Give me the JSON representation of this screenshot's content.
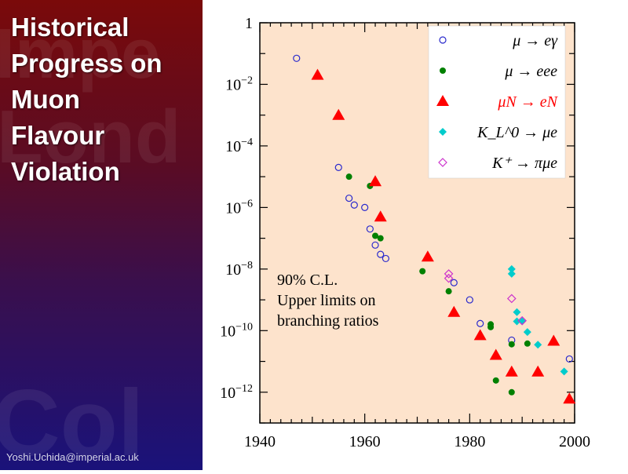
{
  "slide": {
    "title_lines": [
      "Historical",
      "Progress on",
      "Muon",
      "Flavour",
      "Violation"
    ],
    "email": "Yoshi.Uchida@imperial.ac.uk"
  },
  "colors": {
    "plot_bg": "#fde3cc",
    "mu_egamma": "#2a2acc",
    "mu_eee": "#008000",
    "muN_eN": "#ff0000",
    "KL_mue": "#00cccc",
    "Kplus_pimue": "#cc33cc"
  },
  "chart_data": {
    "type": "scatter",
    "y_scale": "log",
    "xlim": [
      1940,
      2000
    ],
    "ylim_log10": [
      -13,
      0
    ],
    "x_ticks": [
      "1940",
      "1960",
      "1980",
      "2000"
    ],
    "y_ticks": [
      {
        "base": "1",
        "exp": ""
      },
      {
        "base": "10",
        "exp": "−2"
      },
      {
        "base": "10",
        "exp": "−4"
      },
      {
        "base": "10",
        "exp": "−6"
      },
      {
        "base": "10",
        "exp": "−8"
      },
      {
        "base": "10",
        "exp": "−10"
      },
      {
        "base": "10",
        "exp": "−12"
      }
    ],
    "annotation": [
      "90% C.L.",
      "Upper limits on",
      "branching ratios"
    ],
    "legend_position": "top-right",
    "series": [
      {
        "name": "μ → eγ",
        "marker": "open-circle",
        "color_key": "mu_egamma",
        "points": [
          [
            1947,
            0.07
          ],
          [
            1955,
            2e-05
          ],
          [
            1957,
            2e-06
          ],
          [
            1958,
            1.2e-06
          ],
          [
            1960,
            1e-06
          ],
          [
            1961,
            2e-07
          ],
          [
            1962,
            6e-08
          ],
          [
            1963,
            3e-08
          ],
          [
            1964,
            2.2e-08
          ],
          [
            1977,
            3.6e-09
          ],
          [
            1980,
            1e-09
          ],
          [
            1982,
            1.7e-10
          ],
          [
            1988,
            4.9e-11
          ],
          [
            1999,
            1.2e-11
          ]
        ]
      },
      {
        "name": "μ → eee",
        "marker": "filled-circle",
        "color_key": "mu_eee",
        "points": [
          [
            1957,
            1e-05
          ],
          [
            1961,
            5e-06
          ],
          [
            1962,
            1.2e-07
          ],
          [
            1963,
            1e-07
          ],
          [
            1971,
            8.5e-09
          ],
          [
            1976,
            1.9e-09
          ],
          [
            1984,
            1.6e-10
          ],
          [
            1984,
            1.3e-10
          ],
          [
            1985,
            2.4e-12
          ],
          [
            1988,
            1e-12
          ],
          [
            1988,
            3.6e-11
          ],
          [
            1991,
            3.8e-11
          ]
        ]
      },
      {
        "name": "μN → eN",
        "marker": "triangle",
        "color_key": "muN_eN",
        "points": [
          [
            1951,
            0.02
          ],
          [
            1955,
            0.001
          ],
          [
            1962,
            7e-06
          ],
          [
            1963,
            5e-07
          ],
          [
            1972,
            2.5e-08
          ],
          [
            1977,
            4e-10
          ],
          [
            1982,
            7e-11
          ],
          [
            1985,
            1.6e-11
          ],
          [
            1988,
            4.6e-12
          ],
          [
            1993,
            4.6e-12
          ],
          [
            1996,
            4.6e-11
          ],
          [
            1999,
            6.1e-13
          ]
        ]
      },
      {
        "name": "K_L^0 → μe",
        "marker": "filled-diamond",
        "color_key": "KL_mue",
        "points": [
          [
            1988,
            1e-08
          ],
          [
            1988,
            7e-09
          ],
          [
            1989,
            4e-10
          ],
          [
            1989,
            2e-10
          ],
          [
            1990,
            2e-10
          ],
          [
            1991,
            9e-11
          ],
          [
            1993,
            3.5e-11
          ],
          [
            1998,
            4.7e-12
          ]
        ]
      },
      {
        "name": "K⁺ → πμe",
        "marker": "open-diamond",
        "color_key": "Kplus_pimue",
        "points": [
          [
            1976,
            7e-09
          ],
          [
            1976,
            5e-09
          ],
          [
            1988,
            1.1e-09
          ],
          [
            1990,
            2.1e-10
          ]
        ]
      }
    ]
  }
}
